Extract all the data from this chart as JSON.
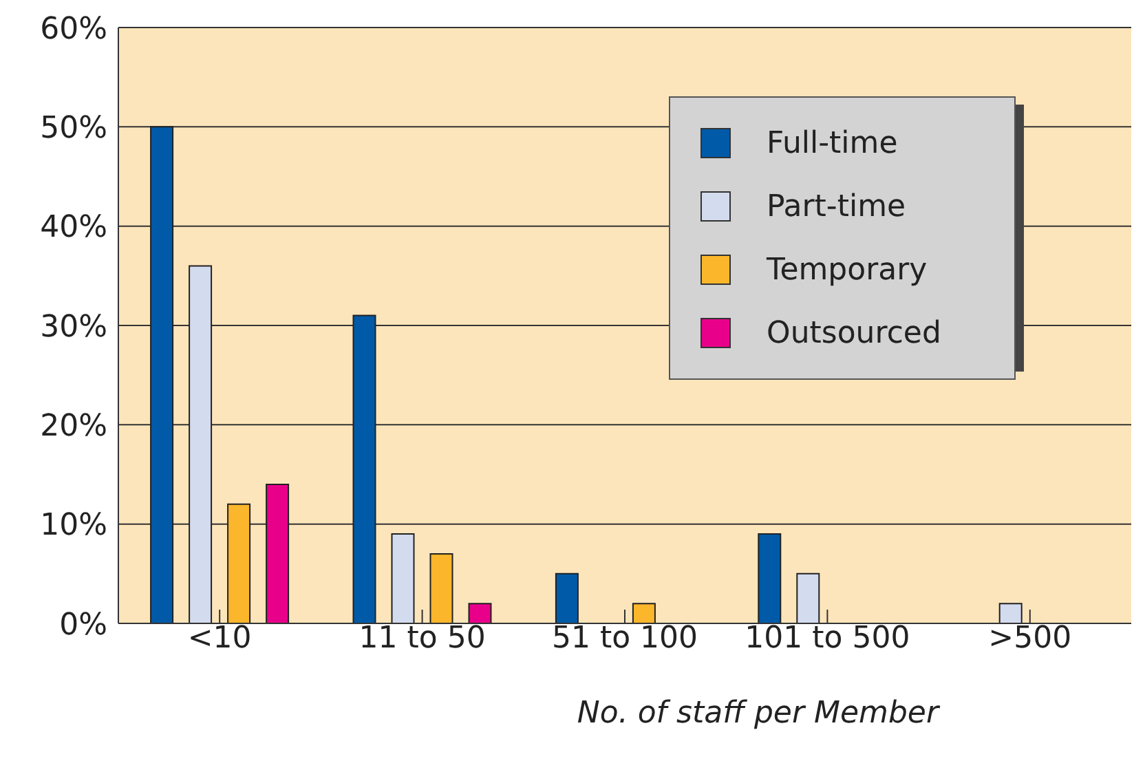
{
  "chart_data": {
    "type": "bar",
    "xlabel": "No. of staff per Member",
    "categories": [
      "<10",
      "11 to 50",
      "51 to 100",
      "101 to 500",
      ">500"
    ],
    "series": [
      {
        "name": "Full-time",
        "color": "#005aa8",
        "values": [
          50,
          31,
          5,
          9,
          0
        ]
      },
      {
        "name": "Part-time",
        "color": "#d3dbee",
        "values": [
          36,
          9,
          0,
          5,
          2
        ]
      },
      {
        "name": "Temporary",
        "color": "#fbb62c",
        "values": [
          12,
          7,
          2,
          0,
          0
        ]
      },
      {
        "name": "Outsourced",
        "color": "#e9008a",
        "values": [
          14,
          2,
          0,
          0,
          0
        ]
      }
    ],
    "ylim": [
      0,
      60
    ],
    "yticks": [
      {
        "value": 0,
        "label": "0%"
      },
      {
        "value": 10,
        "label": "10%"
      },
      {
        "value": 20,
        "label": "20%"
      },
      {
        "value": 30,
        "label": "30%"
      },
      {
        "value": 40,
        "label": "40%"
      },
      {
        "value": 50,
        "label": "50%"
      },
      {
        "value": 60,
        "label": "60%"
      }
    ],
    "grid": "y",
    "legend": "top right"
  }
}
